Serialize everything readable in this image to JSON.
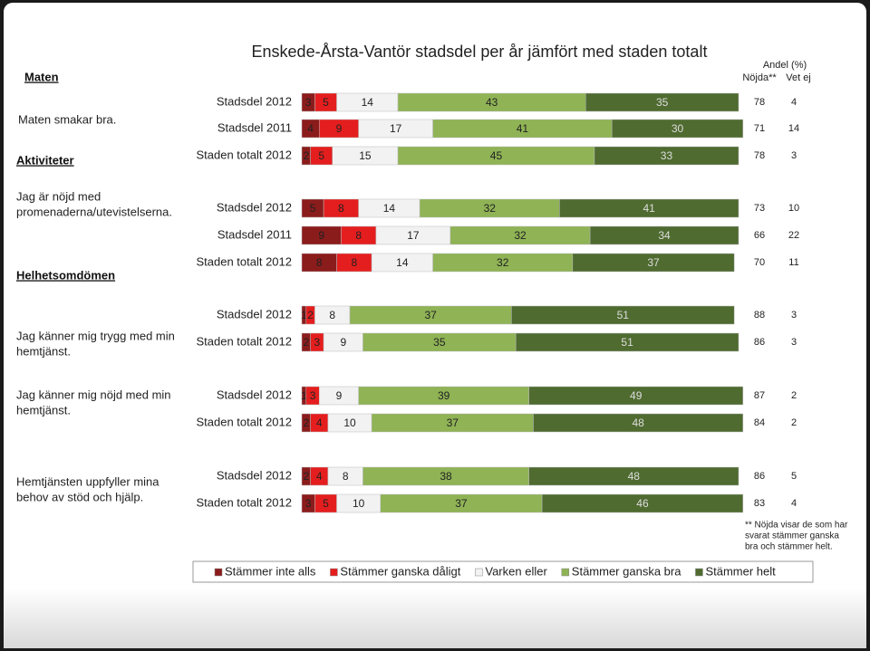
{
  "chart_data": {
    "type": "bar",
    "orientation": "horizontal",
    "stacked": true,
    "title": "Enskede-Årsta-Vantör stadsdel per år jämfört med staden totalt",
    "header": "Andel (%)",
    "column_headers": [
      "Nöjda**",
      "Vet ej"
    ],
    "sections": [
      "Maten",
      "Aktiviteter",
      "Helhetsomdömen"
    ],
    "questions": [
      [
        "Maten smakar bra."
      ],
      [
        "Jag är nöjd med",
        "promenaderna/utevistelserna."
      ],
      [
        "Jag känner mig trygg med min",
        "hemtjänst."
      ],
      [
        "Jag känner mig nöjd med min",
        "hemtjänst."
      ],
      [
        "Hemtjänsten uppfyller mina",
        "behov av stöd och hjälp."
      ]
    ],
    "categories": [
      "Stadsdel 2012",
      "Stadsdel 2011",
      "Staden totalt 2012",
      "Stadsdel 2012",
      "Stadsdel 2011",
      "Staden totalt 2012",
      "Stadsdel 2012",
      "Staden totalt 2012",
      "Stadsdel 2012",
      "Staden totalt 2012",
      "Stadsdel 2012",
      "Staden totalt 2012"
    ],
    "xlim": [
      0,
      100
    ],
    "series": [
      {
        "name": "Stämmer inte alls",
        "color": "#8b1c1c",
        "values": [
          3,
          4,
          2,
          5,
          9,
          8,
          1,
          2,
          1,
          2,
          2,
          3
        ]
      },
      {
        "name": "Stämmer ganska dåligt",
        "color": "#e41e1e",
        "values": [
          5,
          9,
          5,
          8,
          8,
          8,
          2,
          3,
          3,
          4,
          4,
          5
        ]
      },
      {
        "name": "Varken eller",
        "color": "#f2f2f2",
        "values": [
          14,
          17,
          15,
          14,
          17,
          14,
          8,
          9,
          9,
          10,
          8,
          10
        ]
      },
      {
        "name": "Stämmer ganska bra",
        "color": "#8fb355",
        "values": [
          43,
          41,
          45,
          32,
          32,
          32,
          37,
          35,
          39,
          37,
          38,
          37
        ]
      },
      {
        "name": "Stämmer helt",
        "color": "#4f6b30",
        "values": [
          35,
          30,
          33,
          41,
          34,
          37,
          51,
          51,
          49,
          48,
          48,
          46
        ]
      }
    ],
    "nojda": [
      78,
      71,
      78,
      73,
      66,
      70,
      88,
      86,
      87,
      84,
      86,
      83
    ],
    "vet_ej": [
      4,
      14,
      3,
      10,
      22,
      11,
      3,
      3,
      2,
      2,
      5,
      4
    ],
    "footnote": [
      "** Nöjda visar de som har",
      "svarat stämmer ganska",
      "bra och stämmer helt."
    ]
  }
}
